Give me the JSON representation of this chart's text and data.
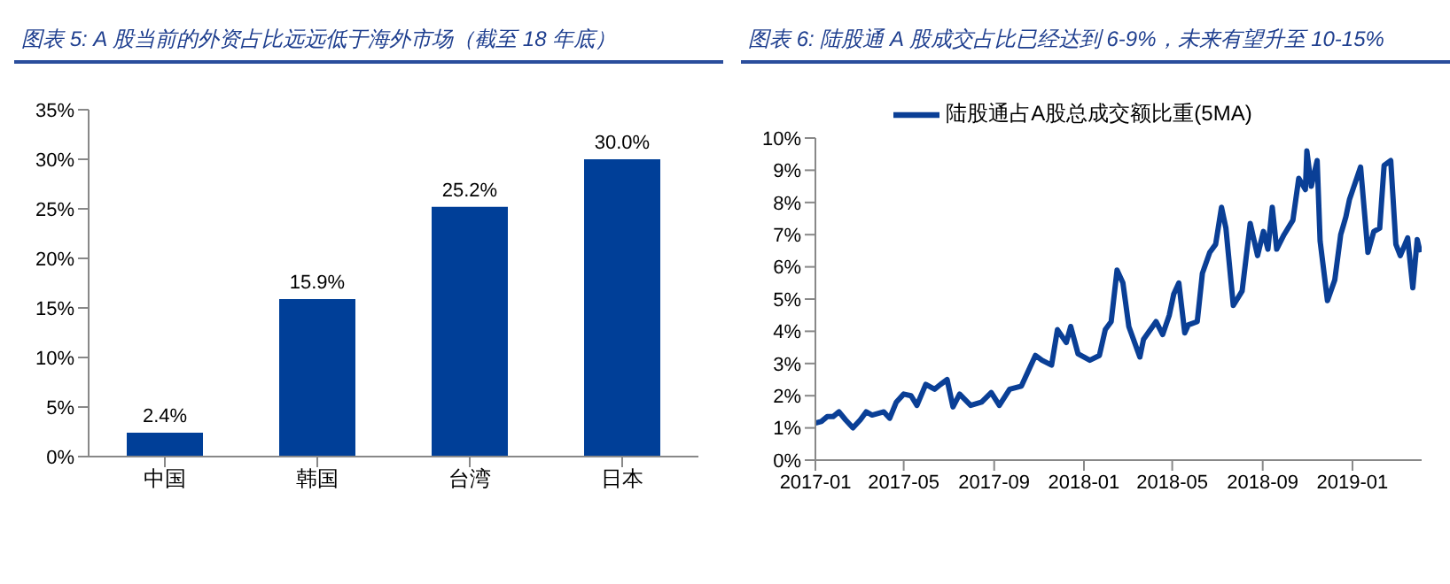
{
  "chart_data": [
    {
      "type": "bar",
      "title": "图表 5:  A 股当前的外资占比远远低于海外市场（截至 18 年底）",
      "categories": [
        "中国",
        "韩国",
        "台湾",
        "日本"
      ],
      "values": [
        2.4,
        15.9,
        25.2,
        30.0
      ],
      "value_labels": [
        "2.4%",
        "15.9%",
        "25.2%",
        "30.0%"
      ],
      "color": "#003f98",
      "ylim": [
        0,
        35
      ],
      "yticks": [
        {
          "value": 0,
          "label": "0%"
        },
        {
          "value": 5,
          "label": "5%"
        },
        {
          "value": 10,
          "label": "10%"
        },
        {
          "value": 15,
          "label": "15%"
        },
        {
          "value": 20,
          "label": "20%"
        },
        {
          "value": 25,
          "label": "25%"
        },
        {
          "value": 30,
          "label": "30%"
        },
        {
          "value": 35,
          "label": "35%"
        }
      ],
      "grid": false,
      "legend": false
    },
    {
      "type": "line",
      "title": "图表 6:  陆股通 A 股成交占比已经达到 6-9%，未来有望升至 10-15%",
      "legend": "top",
      "grid": false,
      "marker": "none",
      "line_style": "solid",
      "xlim": [
        "2017-01-01",
        "2019-04-05"
      ],
      "xticks": [
        "2017-01",
        "2017-05",
        "2017-09",
        "2018-01",
        "2018-05",
        "2018-09",
        "2019-01"
      ],
      "ylim": [
        0,
        10
      ],
      "yticks": [
        {
          "value": 0,
          "label": "0%"
        },
        {
          "value": 1,
          "label": "1%"
        },
        {
          "value": 2,
          "label": "2%"
        },
        {
          "value": 3,
          "label": "3%"
        },
        {
          "value": 4,
          "label": "4%"
        },
        {
          "value": 5,
          "label": "5%"
        },
        {
          "value": 6,
          "label": "6%"
        },
        {
          "value": 7,
          "label": "7%"
        },
        {
          "value": 8,
          "label": "8%"
        },
        {
          "value": 9,
          "label": "9%"
        },
        {
          "value": 10,
          "label": "10%"
        }
      ],
      "x": [
        "2017-01-01",
        "2017-01-09",
        "2017-01-17",
        "2017-01-25",
        "2017-02-02",
        "2017-02-11",
        "2017-02-21",
        "2017-03-03",
        "2017-03-11",
        "2017-03-19",
        "2017-04-04",
        "2017-04-12",
        "2017-04-21",
        "2017-05-01",
        "2017-05-11",
        "2017-05-19",
        "2017-05-31",
        "2017-06-12",
        "2017-06-20",
        "2017-06-29",
        "2017-07-07",
        "2017-07-16",
        "2017-07-31",
        "2017-08-15",
        "2017-08-28",
        "2017-09-08",
        "2017-09-22",
        "2017-10-08",
        "2017-10-19",
        "2017-10-27",
        "2017-11-05",
        "2017-11-18",
        "2017-11-26",
        "2017-12-08",
        "2017-12-14",
        "2017-12-24",
        "2018-01-09",
        "2018-01-22",
        "2018-01-30",
        "2018-02-07",
        "2018-02-15",
        "2018-02-23",
        "2018-03-03",
        "2018-03-18",
        "2018-03-23",
        "2018-04-09",
        "2018-04-18",
        "2018-04-27",
        "2018-05-03",
        "2018-05-10",
        "2018-05-18",
        "2018-05-23",
        "2018-06-04",
        "2018-06-11",
        "2018-06-21",
        "2018-06-29",
        "2018-07-07",
        "2018-07-13",
        "2018-07-23",
        "2018-08-04",
        "2018-08-15",
        "2018-08-25",
        "2018-09-02",
        "2018-09-08",
        "2018-09-14",
        "2018-09-20",
        "2018-09-30",
        "2018-10-12",
        "2018-10-20",
        "2018-10-29",
        "2018-10-31",
        "2018-11-06",
        "2018-11-14",
        "2018-11-18",
        "2018-11-28",
        "2018-12-08",
        "2018-12-16",
        "2018-12-23",
        "2018-12-28",
        "2019-01-03",
        "2019-01-12",
        "2019-01-22",
        "2019-01-30",
        "2019-02-07",
        "2019-02-13",
        "2019-02-22",
        "2019-03-01",
        "2019-03-07",
        "2019-03-17",
        "2019-03-24",
        "2019-03-30",
        "2019-04-03"
      ],
      "series": [
        {
          "name": "陆股通占A股总成交额比重(5MA)",
          "color": "#0a3f96",
          "values": [
            1.15,
            1.2,
            1.35,
            1.35,
            1.5,
            1.25,
            1.0,
            1.25,
            1.5,
            1.4,
            1.5,
            1.3,
            1.8,
            2.05,
            2.0,
            1.7,
            2.35,
            2.2,
            2.35,
            2.5,
            1.65,
            2.05,
            1.7,
            1.8,
            2.1,
            1.7,
            2.2,
            2.3,
            2.85,
            3.25,
            3.1,
            2.95,
            4.05,
            3.65,
            4.15,
            3.3,
            3.1,
            3.25,
            4.05,
            4.3,
            5.9,
            5.5,
            4.15,
            3.2,
            3.75,
            4.3,
            3.9,
            4.5,
            5.15,
            5.5,
            3.95,
            4.2,
            4.3,
            5.8,
            6.45,
            6.7,
            7.85,
            7.2,
            4.8,
            5.25,
            7.35,
            6.35,
            7.1,
            6.55,
            7.85,
            6.55,
            7.0,
            7.45,
            8.75,
            8.4,
            9.6,
            8.5,
            9.3,
            6.8,
            4.95,
            5.6,
            7.0,
            7.55,
            8.1,
            8.5,
            9.1,
            6.45,
            7.1,
            7.2,
            9.15,
            9.3,
            6.7,
            6.35,
            6.9,
            5.35,
            6.85,
            6.45
          ]
        }
      ]
    }
  ]
}
